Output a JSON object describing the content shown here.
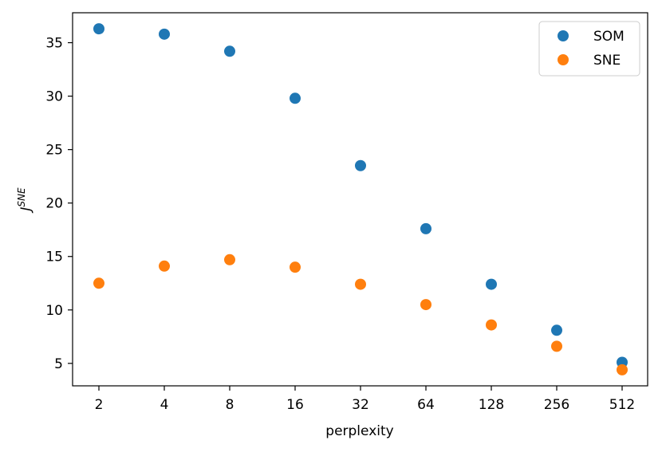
{
  "chart_data": {
    "type": "scatter",
    "title": "",
    "xlabel": "perplexity",
    "ylabel_main": "J",
    "ylabel_superscript": "SNE",
    "x_scale": "log2",
    "x": [
      2,
      4,
      8,
      16,
      32,
      64,
      128,
      256,
      512
    ],
    "x_ticks": [
      "2",
      "4",
      "8",
      "16",
      "32",
      "64",
      "128",
      "256",
      "512"
    ],
    "y_ticks": [
      5,
      10,
      15,
      20,
      25,
      30,
      35
    ],
    "ylim": [
      2.9,
      37.8
    ],
    "grid": false,
    "legend_position": "top-right",
    "series": [
      {
        "name": "SOM",
        "color": "#1f77b4",
        "values": [
          36.3,
          35.8,
          34.2,
          29.8,
          23.5,
          17.6,
          12.4,
          8.1,
          5.1
        ]
      },
      {
        "name": "SNE",
        "color": "#ff7f0e",
        "values": [
          12.5,
          14.1,
          14.7,
          14.0,
          12.4,
          10.5,
          8.6,
          6.6,
          4.4
        ]
      }
    ]
  }
}
